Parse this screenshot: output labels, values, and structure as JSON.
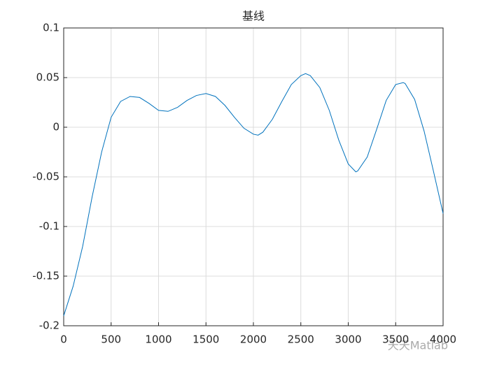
{
  "chart_data": {
    "type": "line",
    "title": "基线",
    "x": [
      0,
      100,
      200,
      300,
      400,
      500,
      600,
      700,
      800,
      900,
      1000,
      1100,
      1200,
      1300,
      1400,
      1500,
      1600,
      1700,
      1800,
      1900,
      2000,
      2050,
      2100,
      2200,
      2300,
      2400,
      2500,
      2550,
      2600,
      2700,
      2800,
      2900,
      3000,
      3080,
      3100,
      3200,
      3300,
      3400,
      3500,
      3580,
      3600,
      3700,
      3800,
      3900,
      4000
    ],
    "values": [
      -0.19,
      -0.16,
      -0.12,
      -0.07,
      -0.025,
      0.01,
      0.026,
      0.031,
      0.03,
      0.024,
      0.017,
      0.016,
      0.02,
      0.027,
      0.032,
      0.034,
      0.031,
      0.022,
      0.01,
      -0.001,
      -0.007,
      -0.008,
      -0.005,
      0.008,
      0.026,
      0.043,
      0.052,
      0.054,
      0.052,
      0.04,
      0.017,
      -0.013,
      -0.037,
      -0.045,
      -0.044,
      -0.03,
      -0.002,
      0.027,
      0.043,
      0.045,
      0.044,
      0.028,
      -0.004,
      -0.045,
      -0.087
    ],
    "color": "#0072bd",
    "xlim": [
      0,
      4000
    ],
    "xticks": [
      0,
      500,
      1000,
      1500,
      2000,
      2500,
      3000,
      3500,
      4000
    ],
    "ylim": [
      -0.2,
      0.1
    ],
    "yticks": [
      -0.2,
      -0.15,
      -0.1,
      -0.05,
      0,
      0.05,
      0.1
    ],
    "grid": true,
    "watermark": "天天Matlab"
  }
}
